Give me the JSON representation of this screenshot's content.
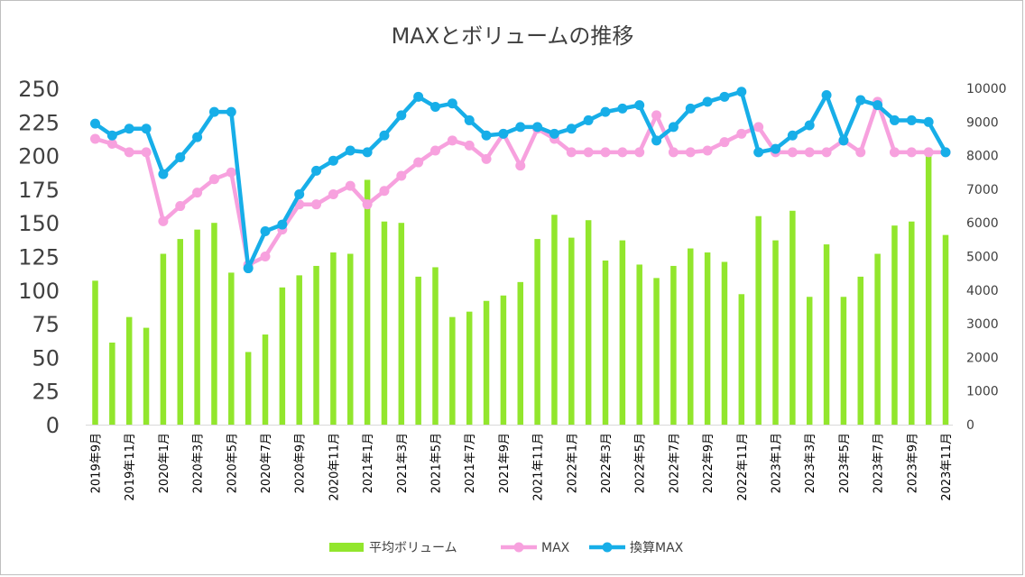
{
  "chart_data": {
    "type": "bar",
    "title": "MAXとボリュームの推移",
    "categories": [
      "2019年9月",
      "2019年10月",
      "2019年11月",
      "2019年12月",
      "2020年1月",
      "2020年2月",
      "2020年3月",
      "2020年4月",
      "2020年5月",
      "2020年6月",
      "2020年7月",
      "2020年8月",
      "2020年9月",
      "2020年10月",
      "2020年11月",
      "2020年12月",
      "2021年1月",
      "2021年2月",
      "2021年3月",
      "2021年4月",
      "2021年5月",
      "2021年6月",
      "2021年7月",
      "2021年8月",
      "2021年9月",
      "2021年10月",
      "2021年11月",
      "2021年12月",
      "2022年1月",
      "2022年2月",
      "2022年3月",
      "2022年4月",
      "2022年5月",
      "2022年6月",
      "2022年7月",
      "2022年8月",
      "2022年9月",
      "2022年10月",
      "2022年11月",
      "2022年12月",
      "2023年1月",
      "2023年2月",
      "2023年3月",
      "2023年4月",
      "2023年5月",
      "2023年6月",
      "2023年7月",
      "2023年8月",
      "2023年9月",
      "2023年10月",
      "2023年11月"
    ],
    "x_tick_labels": [
      "2019年9月",
      "2019年11月",
      "2020年1月",
      "2020年3月",
      "2020年5月",
      "2020年7月",
      "2020年9月",
      "2020年11月",
      "2021年1月",
      "2021年3月",
      "2021年5月",
      "2021年7月",
      "2021年9月",
      "2021年11月",
      "2022年1月",
      "2022年3月",
      "2022年5月",
      "2022年7月",
      "2022年9月",
      "2022年11月",
      "2023年1月",
      "2023年3月",
      "2023年5月",
      "2023年7月",
      "2023年9月",
      "2023年11月"
    ],
    "series": [
      {
        "name": "平均ボリューム",
        "type": "bar",
        "axis": "left",
        "color": "#92e62d",
        "values": [
          107,
          61,
          80,
          72,
          127,
          138,
          145,
          150,
          113,
          54,
          67,
          102,
          111,
          118,
          128,
          127,
          182,
          151,
          150,
          110,
          117,
          80,
          84,
          92,
          96,
          106,
          138,
          156,
          139,
          152,
          122,
          137,
          119,
          109,
          118,
          131,
          128,
          121,
          97,
          155,
          137,
          159,
          95,
          134,
          95,
          110,
          127,
          148,
          151,
          201,
          141
        ]
      },
      {
        "name": "MAX",
        "type": "line",
        "axis": "right",
        "color": "#f7a1de",
        "values": [
          8500,
          8350,
          8100,
          8100,
          6050,
          6500,
          6900,
          7300,
          7500,
          4750,
          5000,
          5800,
          6550,
          6550,
          6850,
          7100,
          6550,
          6950,
          7400,
          7800,
          8150,
          8450,
          8300,
          7900,
          8650,
          7700,
          8800,
          8500,
          8100,
          8100,
          8100,
          8100,
          8100,
          9200,
          8100,
          8100,
          8150,
          8400,
          8650,
          8850,
          8100,
          8100,
          8100,
          8100,
          8450,
          8100,
          9600,
          8100,
          8100,
          8100,
          8100
        ]
      },
      {
        "name": "換算MAX",
        "type": "line",
        "axis": "right",
        "color": "#17aee8",
        "values": [
          8950,
          8600,
          8800,
          8800,
          7450,
          7950,
          8550,
          9300,
          9300,
          4650,
          5750,
          5950,
          6850,
          7550,
          7850,
          8150,
          8100,
          8600,
          9200,
          9750,
          9450,
          9550,
          9050,
          8600,
          8650,
          8850,
          8850,
          8650,
          8800,
          9050,
          9300,
          9400,
          9500,
          8450,
          8850,
          9400,
          9600,
          9750,
          9900,
          8100,
          8200,
          8600,
          8900,
          9800,
          8450,
          9650,
          9500,
          9050,
          9050,
          9000,
          8100
        ]
      }
    ],
    "ylim_left": [
      0,
      250
    ],
    "ylim_right": [
      0,
      10000
    ],
    "yticks_left": [
      "0",
      "25",
      "50",
      "75",
      "100",
      "125",
      "150",
      "175",
      "200",
      "225",
      "250"
    ],
    "yticks_right": [
      "0",
      "1000",
      "2000",
      "3000",
      "4000",
      "5000",
      "6000",
      "7000",
      "8000",
      "9000",
      "10000"
    ],
    "legend_position": "bottom",
    "grid": false
  },
  "legend": {
    "items": [
      {
        "label": "平均ボリューム",
        "color": "#92e62d",
        "kind": "bar"
      },
      {
        "label": "MAX",
        "color": "#f7a1de",
        "kind": "line"
      },
      {
        "label": "換算MAX",
        "color": "#17aee8",
        "kind": "line"
      }
    ]
  }
}
